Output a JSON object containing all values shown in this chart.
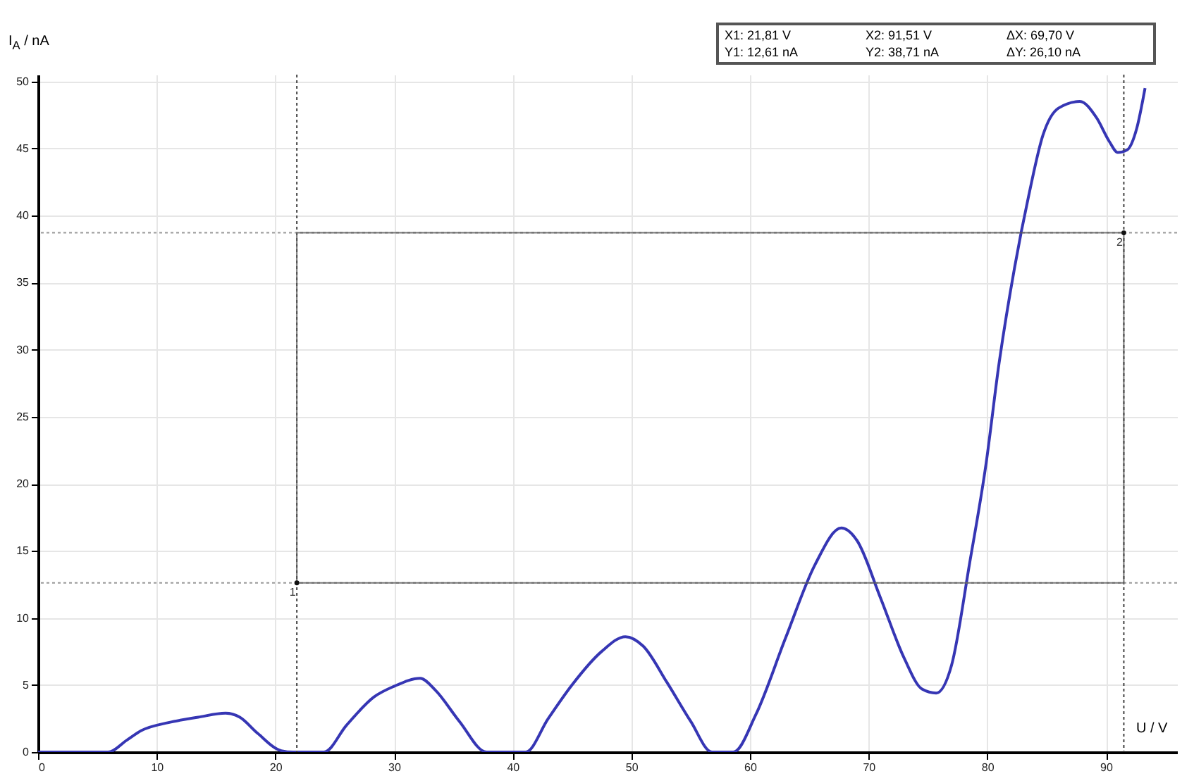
{
  "chart_data": {
    "type": "line",
    "xlabel": "U / V",
    "ylabel": "I$_{A}$ / nA",
    "xlim": [
      0,
      96
    ],
    "ylim": [
      0,
      50.5
    ],
    "xticks": [
      0,
      10,
      20,
      30,
      40,
      50,
      60,
      70,
      80,
      90
    ],
    "yticks": [
      0,
      5,
      10,
      15,
      20,
      25,
      30,
      35,
      40,
      45,
      50
    ],
    "grid": true,
    "series": [
      {
        "color": "#3636b4",
        "x": [
          0,
          3,
          5.9,
          7.5,
          8.7,
          11,
          13.5,
          15.8,
          17,
          18.5,
          20.5,
          21.5,
          24.1,
          26,
          28.3,
          30,
          32.2,
          33.5,
          35.5,
          37.8,
          41.1,
          43,
          45,
          47.5,
          49.5,
          51,
          53,
          55,
          56.8,
          58.6,
          60.5,
          63,
          65.5,
          67.7,
          69,
          71,
          73,
          74.5,
          75.7,
          77,
          78.5,
          79.9,
          81,
          82.3,
          83.5,
          84.7,
          86,
          87.8,
          89.2,
          90.3,
          91,
          91.8,
          92.6,
          93.3
        ],
        "values": [
          0,
          0,
          0,
          0.9,
          1.6,
          2.2,
          2.6,
          2.9,
          2.6,
          1.4,
          0.1,
          0,
          0,
          2,
          4.1,
          4.9,
          5.5,
          4.6,
          2.3,
          0,
          0,
          2.5,
          5,
          7.5,
          8.6,
          7.9,
          5.2,
          2.3,
          0,
          0,
          2.8,
          8.5,
          14,
          16.7,
          15.8,
          11.5,
          7,
          4.7,
          4.4,
          6.5,
          14,
          21.5,
          29,
          36.1,
          41.5,
          46,
          48,
          48.5,
          47.3,
          45.5,
          44.7,
          44.9,
          46.5,
          49.5
        ]
      }
    ],
    "ref_lines": [
      {
        "axis": "x",
        "value": 21.81,
        "line_style": "dotted",
        "color": "#444444"
      },
      {
        "axis": "x",
        "value": 91.51,
        "line_style": "dotted",
        "color": "#444444"
      },
      {
        "axis": "y",
        "value": 12.61,
        "line_style": "dotted",
        "color": "#999999"
      },
      {
        "axis": "y",
        "value": 38.71,
        "line_style": "dotted",
        "color": "#999999"
      }
    ],
    "annotations": [
      "X1:  21,81 V",
      "X2:  91,51 V",
      "ΔX:  69,70 V",
      "Y1:  12,61 nA",
      "Y2:  38,71 nA",
      "ΔY:  26,10 nA",
      {
        "text": "1",
        "x": 21.81,
        "y": 12.61
      },
      {
        "text": "2",
        "x": 91.51,
        "y": 38.71
      }
    ]
  }
}
